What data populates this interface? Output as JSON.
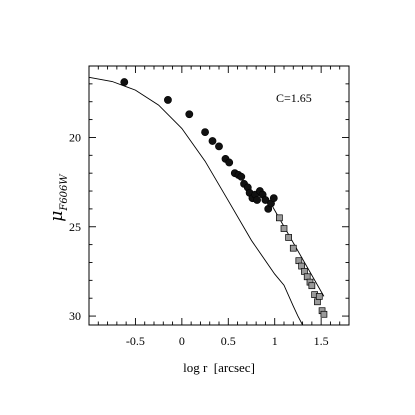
{
  "chart_data": {
    "type": "scatter",
    "xlabel": "log r  [arcsec]",
    "ylabel_symbol": "μ",
    "ylabel_subscript": "F606W",
    "annotation": "C=1.65",
    "xlim": [
      -1.0,
      1.8
    ],
    "ylim": [
      30.5,
      16.0
    ],
    "y_inverted": true,
    "x_ticks": [
      -0.5,
      0,
      0.5,
      1,
      1.5
    ],
    "x_tick_labels": [
      "-0.5",
      "0",
      "0.5",
      "1",
      "1.5"
    ],
    "y_ticks": [
      20,
      25,
      30
    ],
    "y_tick_labels": [
      "20",
      "25",
      "30"
    ],
    "grid": false,
    "series": [
      {
        "marker": "filled-circle",
        "x": [
          -0.62,
          -0.15,
          0.08,
          0.25,
          0.33,
          0.4,
          0.47,
          0.51,
          0.57,
          0.61,
          0.64,
          0.67,
          0.71,
          0.73,
          0.76,
          0.79,
          0.81,
          0.84,
          0.87,
          0.9,
          0.93,
          0.96,
          0.99
        ],
        "y": [
          16.9,
          17.9,
          18.7,
          19.7,
          20.2,
          20.5,
          21.2,
          21.4,
          22.0,
          22.1,
          22.2,
          22.6,
          22.8,
          23.1,
          23.4,
          23.2,
          23.5,
          23.0,
          23.2,
          23.5,
          24.0,
          23.7,
          23.4
        ]
      },
      {
        "marker": "open-square",
        "x": [
          1.05,
          1.1,
          1.15,
          1.2,
          1.26,
          1.29,
          1.32,
          1.35,
          1.38,
          1.4,
          1.43,
          1.46,
          1.48,
          1.51,
          1.53
        ],
        "y": [
          24.5,
          25.1,
          25.6,
          26.2,
          26.9,
          27.2,
          27.5,
          27.8,
          28.1,
          28.3,
          28.8,
          29.2,
          28.9,
          29.7,
          29.9
        ]
      }
    ],
    "model_curve": {
      "style": "solid-thin",
      "x": [
        -1.0,
        -0.75,
        -0.5,
        -0.25,
        0.0,
        0.25,
        0.5,
        0.75,
        1.0,
        1.1,
        1.2,
        1.25,
        1.3
      ],
      "y": [
        16.63,
        16.87,
        17.35,
        18.19,
        19.5,
        21.33,
        23.54,
        25.77,
        27.65,
        28.27,
        29.45,
        30.0,
        30.5
      ]
    },
    "fit_line": {
      "style": "solid-thin",
      "x": [
        0.98,
        1.53
      ],
      "y": [
        23.9,
        28.9
      ]
    }
  }
}
